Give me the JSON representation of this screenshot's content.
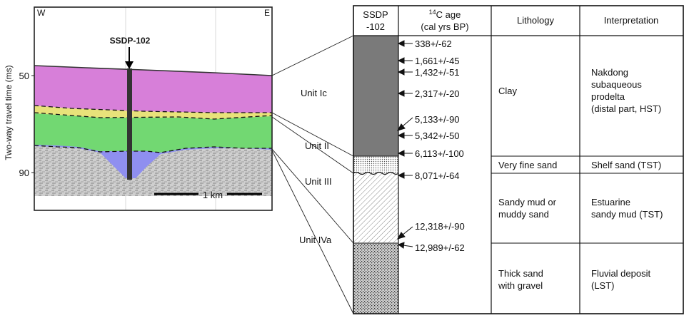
{
  "seismic": {
    "west_label": "W",
    "east_label": "E",
    "core_label": "SSDP-102",
    "y_axis_label": "Two-way travel time (ms)",
    "y_ticks": [
      "50",
      "90"
    ],
    "scale_label": "1 km"
  },
  "units": [
    "Unit Ic",
    "Unit II",
    "Unit III",
    "Unit IVa"
  ],
  "table": {
    "col_core": [
      "SSDP",
      "-102"
    ],
    "col_age_prefix": "14",
    "col_age_line1": "C age",
    "col_age_line2": "(cal yrs BP)",
    "col_lithology": "Lithology",
    "col_interpretation": "Interpretation"
  },
  "ages": [
    "338+/-62",
    "1,661+/-45",
    "1,432+/-51",
    "2,317+/-20",
    "5,133+/-90",
    "5,342+/-50",
    "6,113+/-100",
    "8,071+/-64",
    "12,318+/-90",
    "12,989+/-62"
  ],
  "rows": [
    {
      "lithology": [
        "Clay"
      ],
      "interpretation": [
        "Nakdong",
        "subaqueous",
        "prodelta",
        "(distal part, HST)"
      ]
    },
    {
      "lithology": [
        "Very fine sand"
      ],
      "interpretation": [
        "Shelf sand (TST)"
      ]
    },
    {
      "lithology": [
        "Sandy mud or",
        "muddy sand"
      ],
      "interpretation": [
        "Estuarine",
        "sandy mud (TST)"
      ]
    },
    {
      "lithology": [
        "Thick sand",
        "with gravel"
      ],
      "interpretation": [
        "Fluvial deposit",
        "(LST)"
      ]
    }
  ],
  "colors": {
    "unit_ic": "#d77fd9",
    "unit_ii": "#e8e27a",
    "unit_iii": "#72d872",
    "unit_iva": "#8f8ff0",
    "clay_column": "#7a7a7a"
  }
}
